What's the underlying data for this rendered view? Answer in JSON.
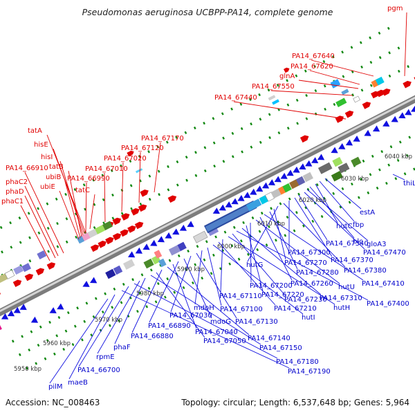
{
  "title": "Pseudomonas aeruginosa UCBPP-PA14, complete genome",
  "footer": {
    "accession": "Accession: NC_008463",
    "summary": "Topology: circular; Length: 6,537,648 bp; Genes: 5,964"
  },
  "colors": {
    "top_strand": "#e00000",
    "bottom_strand": "#1010e0",
    "backbone": "#9a9a9a",
    "tick": "#118811"
  },
  "kbp_ticks": [
    "5950 kbp",
    "5960 kbp",
    "5970 kbp",
    "5980 kbp",
    "5990 kbp",
    "6000 kbp",
    "6010 kbp",
    "6020 kbp",
    "6030 kbp",
    "6040 kbp"
  ],
  "top_labels": [
    "pgm",
    "PA14_67640",
    "PA14_67620",
    "glnA",
    "PA14_67550",
    "PA14_67440",
    "PA14_67170",
    "PA14_67120",
    "PA14_67020",
    "PA14_67010",
    "PA14_66990",
    "tatA",
    "hisE",
    "hisI",
    "tatB",
    "ubiB",
    "ubiE",
    "tatC",
    "PA14_66910",
    "phaC2",
    "phaD",
    "phaC1"
  ],
  "bottom_labels": [
    "thiL",
    "estA",
    "fbp",
    "hutC",
    "blc",
    "gloA3",
    "PA14_67470",
    "PA14_67340",
    "PA14_67370",
    "PA14_67300",
    "PA14_67380",
    "hutG",
    "PA14_67270",
    "PA14_67280",
    "PA14_67410",
    "PA14_67260",
    "hutU",
    "PA14_67200",
    "PA14_67220",
    "PA14_67310",
    "PA14_67400",
    "PA14_67230",
    "hutH",
    "PA14_67110",
    "PA14_67210",
    "hutI",
    "PA14_67100",
    "mdoH",
    "PA14_67130",
    "PA14_67030",
    "mdoG",
    "PA14_66890",
    "PA14_67040",
    "PA14_67140",
    "PA14_66880",
    "PA14_67050",
    "PA14_67150",
    "phaF",
    "rpmE",
    "PA14_67180",
    "PA14_66700",
    "PA14_67190",
    "maeB",
    "pilM"
  ]
}
